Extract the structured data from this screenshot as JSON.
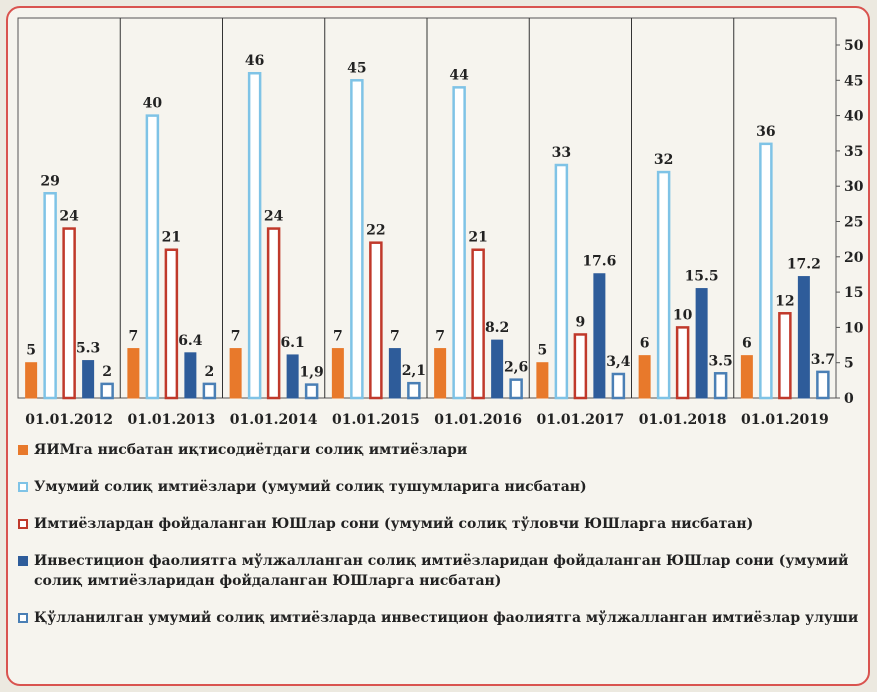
{
  "chart_data": {
    "type": "bar",
    "categories": [
      "01.01.2012",
      "01.01.2013",
      "01.01.2014",
      "01.01.2015",
      "01.01.2016",
      "01.01.2017",
      "01.01.2018",
      "01.01.2019"
    ],
    "series": [
      {
        "name": "ЯИМга нисбатан иқтисодиётдаги солиқ имтиёзлари",
        "color": "#e8792b",
        "style": "solid",
        "values": [
          5,
          7,
          7,
          7,
          7,
          5,
          6,
          6
        ]
      },
      {
        "name": "Умумий солиқ имтиёзлари (умумий солиқ тушумларига нисбатан)",
        "color": "#7fc3e6",
        "style": "outline",
        "values": [
          29,
          40,
          46,
          45,
          44,
          33,
          32,
          36
        ]
      },
      {
        "name": "Имтиёзлардан фойдаланган ЮШлар сони (умумий солиқ тўловчи ЮШларга нисбатан)",
        "color": "#c0392b",
        "style": "outline",
        "values": [
          24,
          21,
          24,
          22,
          21,
          9,
          10,
          12
        ]
      },
      {
        "name": "Инвестицион фаолиятга мўлжалланган солиқ имтиёзларидан фойдаланган ЮШлар сони (умумий солиқ имтиёзларидан фойдаланган ЮШларга нисбатан)",
        "color": "#2e5c9a",
        "style": "solid",
        "values": [
          5.3,
          6.4,
          6.1,
          7,
          8.2,
          17.6,
          15.5,
          17.2
        ]
      },
      {
        "name": "Қўлланилган умумий солиқ имтиёзларда инвестицион фаолиятга мўлжалланган имтиёзлар улуши",
        "color": "#4a7fb5",
        "style": "outline",
        "values": [
          2,
          2,
          1.9,
          2.1,
          2.6,
          3.4,
          3.5,
          3.7
        ],
        "value_labels": [
          "2",
          "2",
          "1,9",
          "2,1",
          "2,6",
          "3,4",
          "3.5",
          "3.7"
        ]
      }
    ],
    "ylim": [
      0,
      50
    ],
    "yticks": [
      0,
      5,
      10,
      15,
      20,
      25,
      30,
      35,
      40,
      45,
      50
    ],
    "y_axis_side": "right"
  }
}
